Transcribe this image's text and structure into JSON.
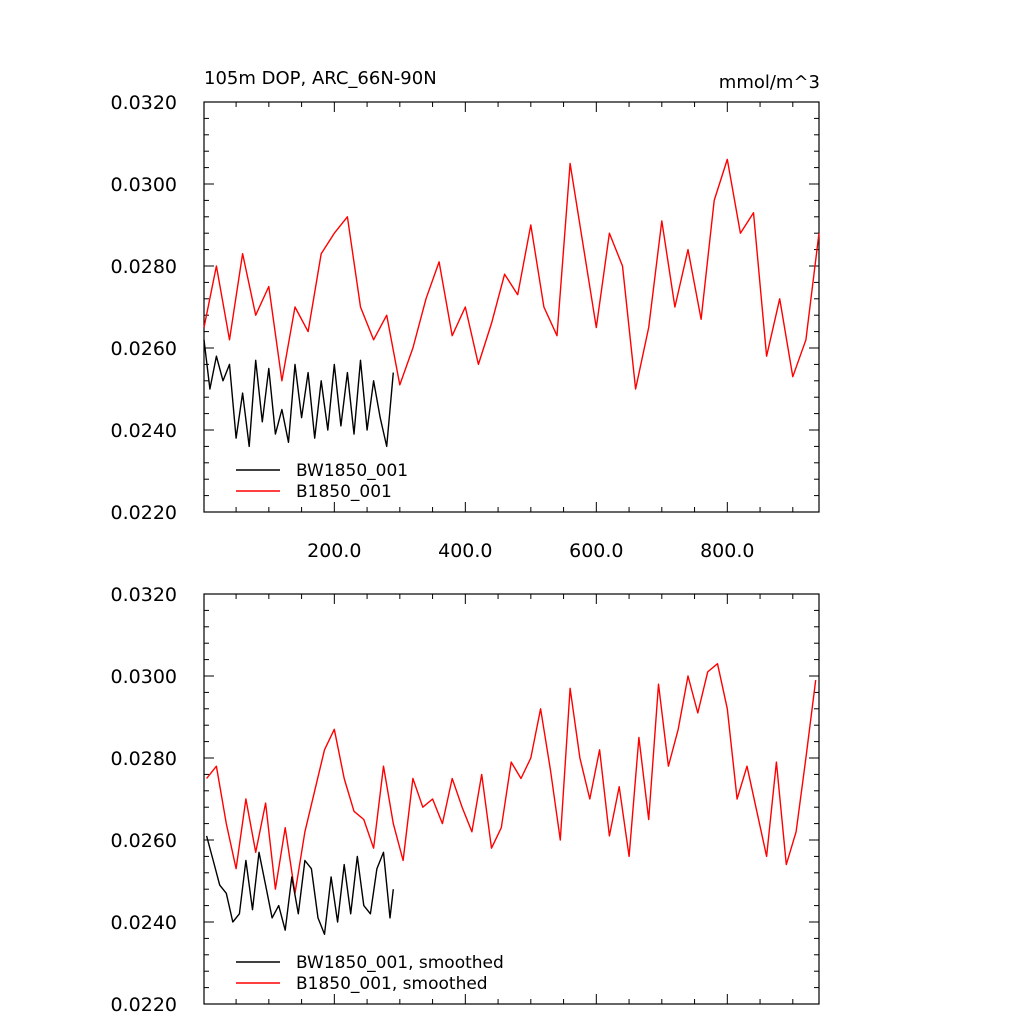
{
  "chart_data": [
    {
      "type": "line",
      "title": "105m DOP, ARC_66N-90N",
      "units": "mmol/m^3",
      "xlabel": "",
      "ylabel": "",
      "xlim": [
        1,
        940
      ],
      "ylim": [
        0.022,
        0.032
      ],
      "xticks": [
        200,
        400,
        600,
        800
      ],
      "xtick_labels": [
        "200.0",
        "400.0",
        "600.0",
        "800.0"
      ],
      "yticks": [
        0.022,
        0.024,
        0.026,
        0.028,
        0.03,
        0.032
      ],
      "ytick_labels": [
        "0.0220",
        "0.0240",
        "0.0260",
        "0.0280",
        "0.0300",
        "0.0320"
      ],
      "legend_position": "bottom-left",
      "series": [
        {
          "name": "BW1850_001",
          "color": "#000000",
          "x": [
            1,
            10,
            20,
            30,
            40,
            50,
            60,
            70,
            80,
            90,
            100,
            110,
            120,
            130,
            140,
            150,
            160,
            170,
            180,
            190,
            200,
            210,
            220,
            230,
            240,
            250,
            260,
            270,
            280,
            290
          ],
          "y": [
            0.0262,
            0.025,
            0.0258,
            0.0252,
            0.0256,
            0.0238,
            0.0249,
            0.0236,
            0.0257,
            0.0242,
            0.0255,
            0.0239,
            0.0245,
            0.0237,
            0.0256,
            0.0243,
            0.0254,
            0.0238,
            0.0252,
            0.024,
            0.0256,
            0.0241,
            0.0254,
            0.0239,
            0.0257,
            0.024,
            0.0252,
            0.0243,
            0.0236,
            0.0254
          ]
        },
        {
          "name": "B1850_001",
          "color": "#ff0000",
          "x": [
            1,
            20,
            40,
            60,
            80,
            100,
            120,
            140,
            160,
            180,
            200,
            220,
            240,
            260,
            280,
            300,
            320,
            340,
            360,
            380,
            400,
            420,
            440,
            460,
            480,
            500,
            520,
            540,
            560,
            580,
            600,
            620,
            640,
            660,
            680,
            700,
            720,
            740,
            760,
            780,
            800,
            820,
            840,
            860,
            880,
            900,
            920,
            940
          ],
          "y": [
            0.0265,
            0.028,
            0.0262,
            0.0283,
            0.0268,
            0.0275,
            0.0252,
            0.027,
            0.0264,
            0.0283,
            0.0288,
            0.0292,
            0.027,
            0.0262,
            0.0268,
            0.0251,
            0.026,
            0.0272,
            0.0281,
            0.0263,
            0.027,
            0.0256,
            0.0266,
            0.0278,
            0.0273,
            0.029,
            0.027,
            0.0263,
            0.0305,
            0.0285,
            0.0265,
            0.0288,
            0.028,
            0.025,
            0.0265,
            0.0291,
            0.027,
            0.0284,
            0.0267,
            0.0296,
            0.0306,
            0.0288,
            0.0293,
            0.0258,
            0.0272,
            0.0253,
            0.0262,
            0.0288
          ]
        }
      ]
    },
    {
      "type": "line",
      "title": "",
      "xlabel": "",
      "ylabel": "",
      "xlim": [
        1,
        940
      ],
      "ylim": [
        0.022,
        0.032
      ],
      "xticks": [
        200,
        400,
        600,
        800
      ],
      "yticks": [
        0.022,
        0.024,
        0.026,
        0.028,
        0.03,
        0.032
      ],
      "ytick_labels": [
        "0.0220",
        "0.0240",
        "0.0260",
        "0.0280",
        "0.0300",
        "0.0320"
      ],
      "legend_position": "bottom-left",
      "series": [
        {
          "name": "BW1850_001, smoothed",
          "color": "#000000",
          "x": [
            5,
            15,
            25,
            35,
            45,
            55,
            65,
            75,
            85,
            95,
            105,
            115,
            125,
            135,
            145,
            155,
            165,
            175,
            185,
            195,
            205,
            215,
            225,
            235,
            245,
            255,
            265,
            275,
            285,
            290
          ],
          "y": [
            0.0261,
            0.0255,
            0.0249,
            0.0247,
            0.024,
            0.0242,
            0.0255,
            0.0243,
            0.0257,
            0.0249,
            0.0241,
            0.0244,
            0.0238,
            0.0251,
            0.0242,
            0.0255,
            0.0253,
            0.0241,
            0.0237,
            0.0251,
            0.024,
            0.0254,
            0.0242,
            0.0256,
            0.0244,
            0.0242,
            0.0253,
            0.0257,
            0.0241,
            0.0248
          ]
        },
        {
          "name": "B1850_001, smoothed",
          "color": "#ff0000",
          "x": [
            5,
            20,
            35,
            50,
            65,
            80,
            95,
            110,
            125,
            140,
            155,
            170,
            185,
            200,
            215,
            230,
            245,
            260,
            275,
            290,
            305,
            320,
            335,
            350,
            365,
            380,
            395,
            410,
            425,
            440,
            455,
            470,
            485,
            500,
            515,
            530,
            545,
            560,
            575,
            590,
            605,
            620,
            635,
            650,
            665,
            680,
            695,
            710,
            725,
            740,
            755,
            770,
            785,
            800,
            815,
            830,
            845,
            860,
            875,
            890,
            905,
            920,
            935
          ],
          "y": [
            0.0275,
            0.0278,
            0.0264,
            0.0253,
            0.027,
            0.0257,
            0.0269,
            0.0248,
            0.0263,
            0.0247,
            0.0262,
            0.0272,
            0.0282,
            0.0287,
            0.0275,
            0.0267,
            0.0265,
            0.0258,
            0.0278,
            0.0264,
            0.0255,
            0.0275,
            0.0268,
            0.027,
            0.0264,
            0.0275,
            0.0268,
            0.0262,
            0.0276,
            0.0258,
            0.0263,
            0.0279,
            0.0275,
            0.028,
            0.0292,
            0.0277,
            0.026,
            0.0297,
            0.028,
            0.027,
            0.0282,
            0.0261,
            0.0273,
            0.0256,
            0.0285,
            0.0265,
            0.0298,
            0.0278,
            0.0287,
            0.03,
            0.0291,
            0.0301,
            0.0303,
            0.0292,
            0.027,
            0.0278,
            0.0267,
            0.0256,
            0.0279,
            0.0254,
            0.0262,
            0.028,
            0.0299
          ]
        }
      ]
    }
  ]
}
